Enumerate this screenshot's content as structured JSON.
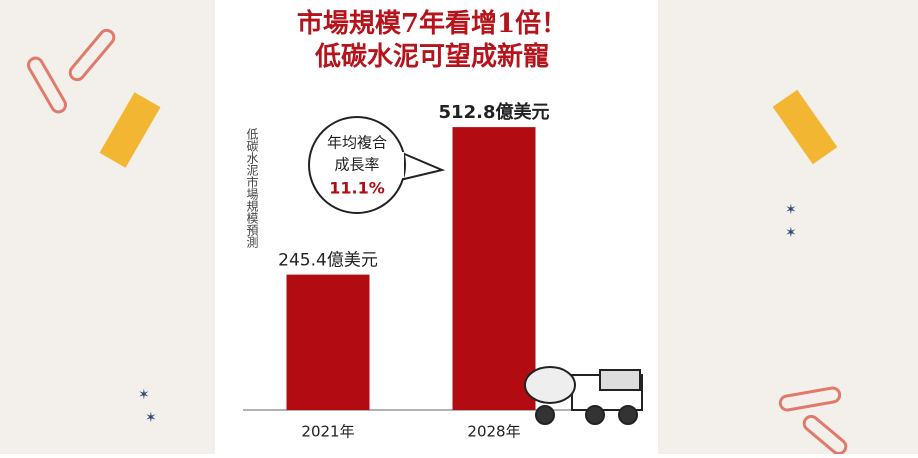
{
  "chart_data": {
    "type": "bar",
    "title": [
      "市場規模7年看增1倍！",
      "低碳水泥可望成新寵"
    ],
    "ylabel": "低碳水泥市場規模預測",
    "categories": [
      "2021年",
      "2028年"
    ],
    "values": [
      245.4,
      512.8
    ],
    "value_labels": [
      "245.4億美元",
      "512.8億美元"
    ],
    "color": "#b30b12",
    "ylim": [
      0,
      600
    ],
    "annotation": [
      "年均複合",
      "成長率",
      "11.1%"
    ]
  }
}
